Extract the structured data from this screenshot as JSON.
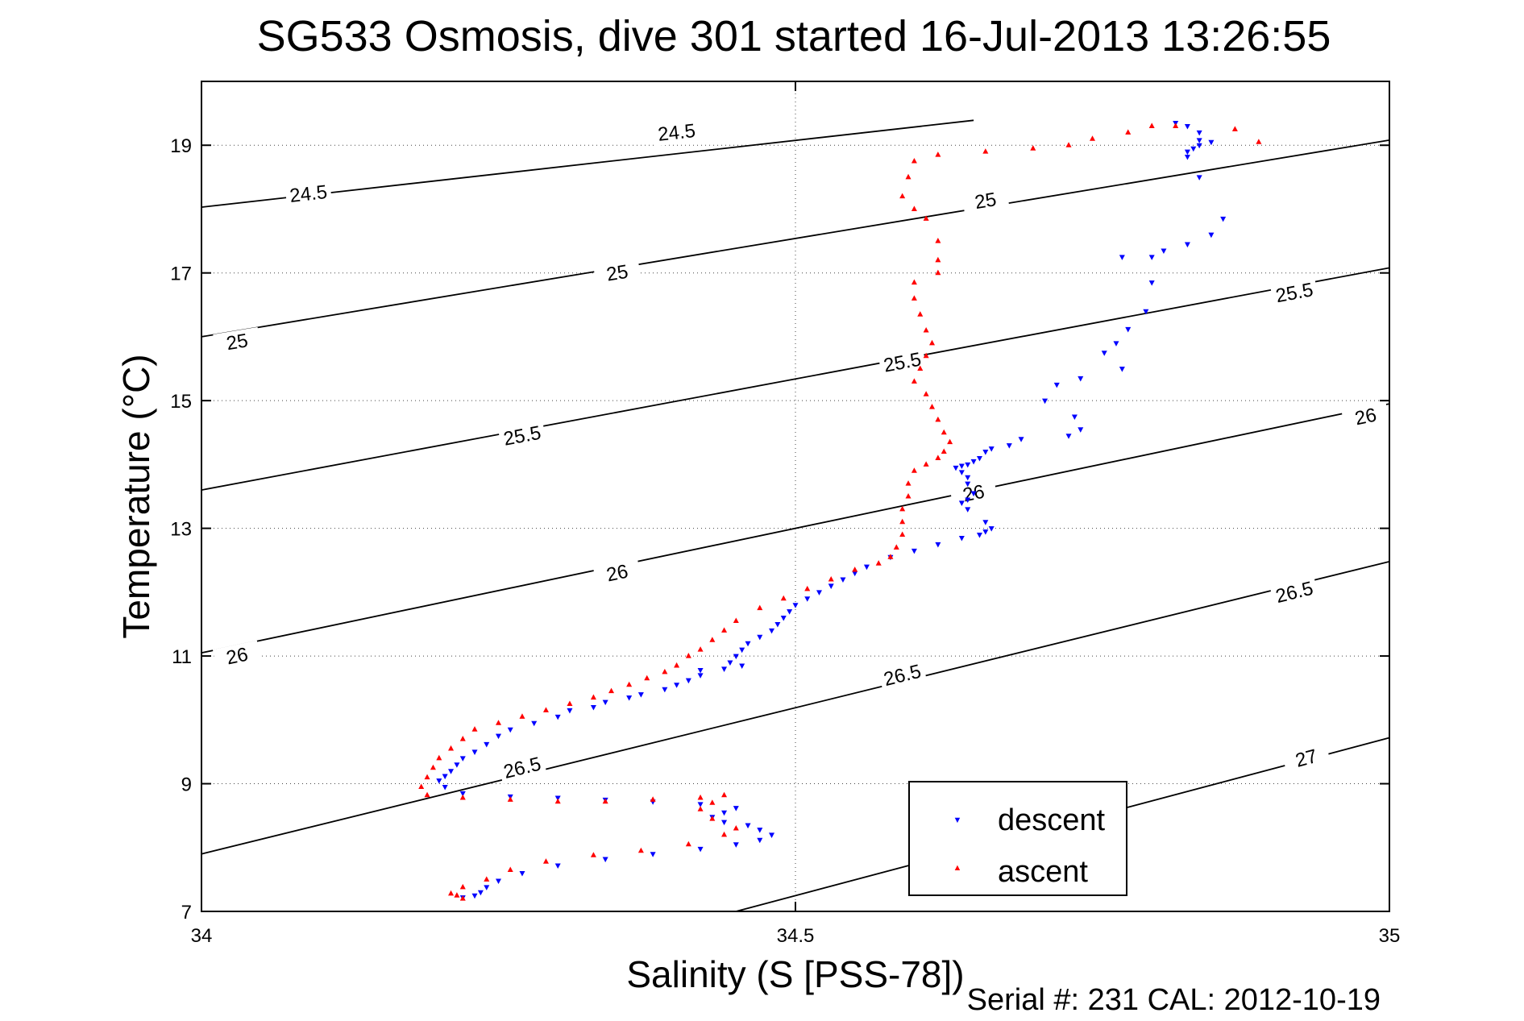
{
  "chart_data": {
    "type": "scatter",
    "title": "SG533 Osmosis, dive 301 started 16-Jul-2013 13:26:55",
    "xlabel": "Salinity (S [PSS-78])",
    "ylabel": "Temperature (°C)",
    "footer": "Serial #: 231  CAL: 2012-10-19",
    "xlim": [
      34,
      35
    ],
    "ylim": [
      7,
      20
    ],
    "x_ticks": [
      34,
      34.5,
      35
    ],
    "x_tick_labels": [
      "34",
      "34.5",
      "35"
    ],
    "y_ticks": [
      7,
      9,
      11,
      13,
      15,
      17,
      19
    ],
    "y_tick_labels": [
      "7",
      "9",
      "11",
      "13",
      "15",
      "17",
      "19"
    ],
    "grid": "dotted",
    "legend_position": "bottom-right",
    "density_contours": [
      {
        "label": "24.5",
        "points": [
          [
            34.0,
            18.03
          ],
          [
            34.65,
            19.39
          ],
          [
            34.65,
            19.39
          ],
          [
            34.65,
            19.39
          ],
          [
            34.65,
            19.39
          ]
        ],
        "label_positions": [
          [
            34.09,
            18.24
          ],
          [
            34.4,
            19.2
          ]
        ]
      },
      {
        "label": "25",
        "points": [
          [
            34.0,
            16.0
          ],
          [
            35.0,
            19.08
          ]
        ],
        "label_positions": [
          [
            34.03,
            15.92
          ],
          [
            34.35,
            17.0
          ],
          [
            34.66,
            18.13
          ]
        ]
      },
      {
        "label": "25.5",
        "points": [
          [
            34.0,
            13.6
          ],
          [
            35.0,
            17.08
          ]
        ],
        "label_positions": [
          [
            34.27,
            14.45
          ],
          [
            34.59,
            15.6
          ],
          [
            34.92,
            16.69
          ]
        ]
      },
      {
        "label": "26",
        "points": [
          [
            34.0,
            11.05
          ],
          [
            35.0,
            14.95
          ]
        ],
        "label_positions": [
          [
            34.03,
            11.0
          ],
          [
            34.35,
            12.3
          ],
          [
            34.65,
            13.55
          ],
          [
            34.98,
            14.75
          ]
        ]
      },
      {
        "label": "26.5",
        "points": [
          [
            34.0,
            7.9
          ],
          [
            35.0,
            12.48
          ]
        ],
        "label_positions": [
          [
            34.27,
            9.25
          ],
          [
            34.59,
            10.7
          ],
          [
            34.92,
            12.0
          ]
        ]
      },
      {
        "label": "27",
        "points": [
          [
            34.45,
            7.0
          ],
          [
            35.0,
            9.72
          ]
        ],
        "label_positions": [
          [
            34.93,
            9.4
          ]
        ]
      }
    ],
    "series": [
      {
        "name": "descent",
        "color": "#0000ff",
        "marker": "triangle-down",
        "points": [
          [
            34.82,
            19.35
          ],
          [
            34.83,
            19.3
          ],
          [
            34.84,
            19.2
          ],
          [
            34.84,
            19.08
          ],
          [
            34.85,
            19.05
          ],
          [
            34.84,
            19.0
          ],
          [
            34.835,
            18.95
          ],
          [
            34.83,
            18.9
          ],
          [
            34.83,
            18.82
          ],
          [
            34.84,
            18.5
          ],
          [
            34.86,
            17.85
          ],
          [
            34.85,
            17.6
          ],
          [
            34.83,
            17.45
          ],
          [
            34.81,
            17.35
          ],
          [
            34.8,
            17.25
          ],
          [
            34.775,
            17.25
          ],
          [
            34.8,
            16.85
          ],
          [
            34.795,
            16.4
          ],
          [
            34.78,
            16.12
          ],
          [
            34.77,
            15.9
          ],
          [
            34.76,
            15.75
          ],
          [
            34.775,
            15.5
          ],
          [
            34.74,
            15.35
          ],
          [
            34.72,
            15.25
          ],
          [
            34.71,
            15.0
          ],
          [
            34.735,
            14.75
          ],
          [
            34.74,
            14.55
          ],
          [
            34.73,
            14.45
          ],
          [
            34.69,
            14.4
          ],
          [
            34.68,
            14.3
          ],
          [
            34.665,
            14.25
          ],
          [
            34.66,
            14.2
          ],
          [
            34.655,
            14.1
          ],
          [
            34.65,
            14.05
          ],
          [
            34.645,
            14.0
          ],
          [
            34.64,
            13.98
          ],
          [
            34.635,
            13.95
          ],
          [
            34.64,
            13.88
          ],
          [
            34.645,
            13.8
          ],
          [
            34.645,
            13.7
          ],
          [
            34.65,
            13.55
          ],
          [
            34.645,
            13.45
          ],
          [
            34.64,
            13.4
          ],
          [
            34.645,
            13.3
          ],
          [
            34.66,
            13.1
          ],
          [
            34.665,
            13.0
          ],
          [
            34.66,
            12.95
          ],
          [
            34.655,
            12.9
          ],
          [
            34.64,
            12.85
          ],
          [
            34.62,
            12.75
          ],
          [
            34.6,
            12.65
          ],
          [
            34.58,
            12.55
          ],
          [
            34.56,
            12.4
          ],
          [
            34.55,
            12.3
          ],
          [
            34.54,
            12.2
          ],
          [
            34.53,
            12.1
          ],
          [
            34.52,
            12.0
          ],
          [
            34.51,
            11.9
          ],
          [
            34.5,
            11.8
          ],
          [
            34.495,
            11.7
          ],
          [
            34.49,
            11.6
          ],
          [
            34.485,
            11.5
          ],
          [
            34.48,
            11.4
          ],
          [
            34.47,
            11.3
          ],
          [
            34.46,
            11.2
          ],
          [
            34.455,
            11.1
          ],
          [
            34.45,
            11.0
          ],
          [
            34.445,
            10.9
          ],
          [
            34.455,
            10.85
          ],
          [
            34.44,
            10.8
          ],
          [
            34.42,
            10.78
          ],
          [
            34.42,
            10.7
          ],
          [
            34.41,
            10.62
          ],
          [
            34.4,
            10.55
          ],
          [
            34.39,
            10.48
          ],
          [
            34.37,
            10.4
          ],
          [
            34.36,
            10.35
          ],
          [
            34.34,
            10.28
          ],
          [
            34.33,
            10.2
          ],
          [
            34.31,
            10.15
          ],
          [
            34.3,
            10.05
          ],
          [
            34.28,
            9.95
          ],
          [
            34.26,
            9.85
          ],
          [
            34.25,
            9.75
          ],
          [
            34.24,
            9.62
          ],
          [
            34.23,
            9.5
          ],
          [
            34.22,
            9.4
          ],
          [
            34.215,
            9.3
          ],
          [
            34.21,
            9.2
          ],
          [
            34.205,
            9.12
          ],
          [
            34.2,
            9.05
          ],
          [
            34.205,
            8.95
          ],
          [
            34.22,
            8.85
          ],
          [
            34.26,
            8.8
          ],
          [
            34.3,
            8.78
          ],
          [
            34.34,
            8.75
          ],
          [
            34.38,
            8.72
          ],
          [
            34.42,
            8.68
          ],
          [
            34.45,
            8.62
          ],
          [
            34.44,
            8.55
          ],
          [
            34.43,
            8.48
          ],
          [
            34.44,
            8.4
          ],
          [
            34.46,
            8.35
          ],
          [
            34.47,
            8.28
          ],
          [
            34.48,
            8.2
          ],
          [
            34.47,
            8.12
          ],
          [
            34.45,
            8.05
          ],
          [
            34.42,
            7.98
          ],
          [
            34.38,
            7.9
          ],
          [
            34.34,
            7.82
          ],
          [
            34.3,
            7.72
          ],
          [
            34.27,
            7.6
          ],
          [
            34.25,
            7.48
          ],
          [
            34.24,
            7.38
          ],
          [
            34.235,
            7.3
          ],
          [
            34.23,
            7.25
          ],
          [
            34.22,
            7.22
          ]
        ]
      },
      {
        "name": "ascent",
        "color": "#ff0000",
        "marker": "triangle-up",
        "points": [
          [
            34.87,
            19.25
          ],
          [
            34.89,
            19.05
          ],
          [
            34.82,
            19.3
          ],
          [
            34.8,
            19.3
          ],
          [
            34.78,
            19.2
          ],
          [
            34.75,
            19.1
          ],
          [
            34.73,
            19.0
          ],
          [
            34.7,
            18.95
          ],
          [
            34.66,
            18.9
          ],
          [
            34.62,
            18.85
          ],
          [
            34.6,
            18.75
          ],
          [
            34.595,
            18.5
          ],
          [
            34.59,
            18.2
          ],
          [
            34.6,
            18.0
          ],
          [
            34.61,
            17.85
          ],
          [
            34.62,
            17.5
          ],
          [
            34.62,
            17.2
          ],
          [
            34.62,
            17.0
          ],
          [
            34.6,
            16.85
          ],
          [
            34.6,
            16.6
          ],
          [
            34.605,
            16.35
          ],
          [
            34.61,
            16.1
          ],
          [
            34.615,
            15.9
          ],
          [
            34.61,
            15.7
          ],
          [
            34.605,
            15.5
          ],
          [
            34.6,
            15.3
          ],
          [
            34.61,
            15.1
          ],
          [
            34.615,
            14.9
          ],
          [
            34.62,
            14.7
          ],
          [
            34.625,
            14.5
          ],
          [
            34.63,
            14.35
          ],
          [
            34.625,
            14.2
          ],
          [
            34.62,
            14.1
          ],
          [
            34.61,
            14.0
          ],
          [
            34.6,
            13.9
          ],
          [
            34.595,
            13.7
          ],
          [
            34.595,
            13.5
          ],
          [
            34.59,
            13.3
          ],
          [
            34.59,
            13.1
          ],
          [
            34.59,
            12.9
          ],
          [
            34.585,
            12.7
          ],
          [
            34.58,
            12.55
          ],
          [
            34.57,
            12.45
          ],
          [
            34.55,
            12.35
          ],
          [
            34.53,
            12.2
          ],
          [
            34.51,
            12.05
          ],
          [
            34.49,
            11.9
          ],
          [
            34.47,
            11.75
          ],
          [
            34.45,
            11.55
          ],
          [
            34.44,
            11.4
          ],
          [
            34.43,
            11.25
          ],
          [
            34.42,
            11.1
          ],
          [
            34.41,
            11.0
          ],
          [
            34.4,
            10.85
          ],
          [
            34.39,
            10.75
          ],
          [
            34.375,
            10.65
          ],
          [
            34.36,
            10.55
          ],
          [
            34.345,
            10.45
          ],
          [
            34.33,
            10.35
          ],
          [
            34.31,
            10.25
          ],
          [
            34.29,
            10.15
          ],
          [
            34.27,
            10.05
          ],
          [
            34.25,
            9.95
          ],
          [
            34.23,
            9.85
          ],
          [
            34.22,
            9.7
          ],
          [
            34.21,
            9.55
          ],
          [
            34.2,
            9.4
          ],
          [
            34.195,
            9.25
          ],
          [
            34.19,
            9.1
          ],
          [
            34.185,
            8.95
          ],
          [
            34.19,
            8.82
          ],
          [
            34.22,
            8.78
          ],
          [
            34.26,
            8.75
          ],
          [
            34.3,
            8.72
          ],
          [
            34.34,
            8.72
          ],
          [
            34.38,
            8.75
          ],
          [
            34.42,
            8.78
          ],
          [
            34.44,
            8.82
          ],
          [
            34.43,
            8.7
          ],
          [
            34.42,
            8.6
          ],
          [
            34.43,
            8.45
          ],
          [
            34.45,
            8.3
          ],
          [
            34.44,
            8.2
          ],
          [
            34.41,
            8.05
          ],
          [
            34.37,
            7.95
          ],
          [
            34.33,
            7.88
          ],
          [
            34.29,
            7.78
          ],
          [
            34.26,
            7.65
          ],
          [
            34.24,
            7.5
          ],
          [
            34.22,
            7.38
          ],
          [
            34.21,
            7.28
          ],
          [
            34.215,
            7.25
          ],
          [
            34.22,
            7.2
          ]
        ]
      }
    ]
  }
}
